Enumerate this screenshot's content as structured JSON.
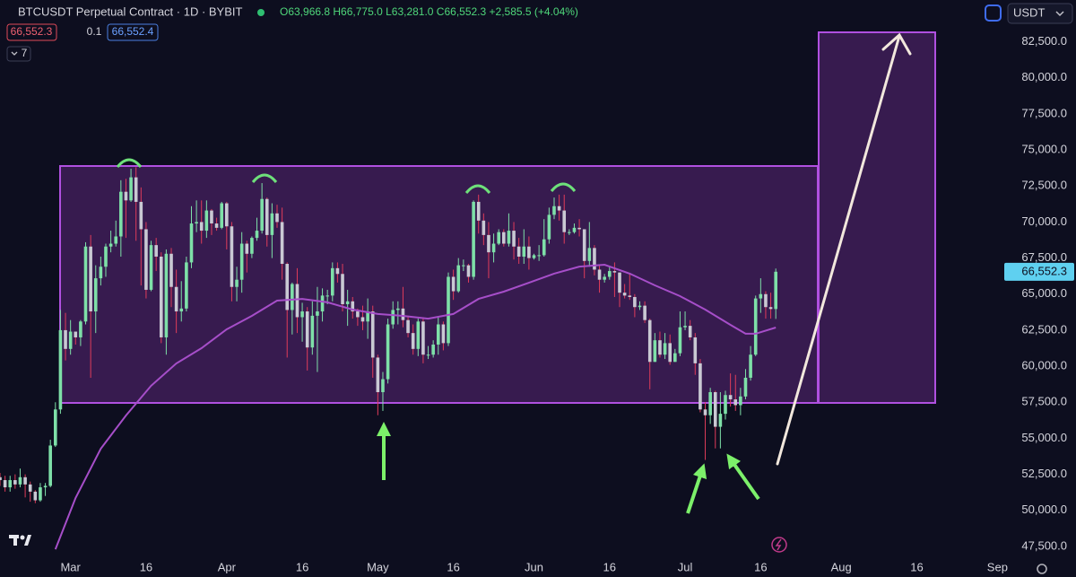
{
  "header": {
    "symbol": "BTCUSDT Perpetual Contract · 1D · BYBIT",
    "ohlc": "O63,966.8 H66,775.0 L63,281.0 C66,552.3 +2,585.5 (+4.04%)",
    "bid": "66,552.3",
    "spread": "0.1",
    "ask": "66,552.4",
    "indicators": "7",
    "currency": "USDT"
  },
  "chart_data": {
    "type": "candlestick",
    "up_color": "#7ee0a8",
    "down_color": "#c9c9d3",
    "down_wick_color": "#e03c5a",
    "xlim": [
      0,
      199
    ],
    "xticks": [
      {
        "value": 14,
        "label": "Mar"
      },
      {
        "value": 29,
        "label": "16"
      },
      {
        "value": 45,
        "label": "Apr"
      },
      {
        "value": 60,
        "label": "16"
      },
      {
        "value": 75,
        "label": "May"
      },
      {
        "value": 90,
        "label": "16"
      },
      {
        "value": 106,
        "label": "Jun"
      },
      {
        "value": 121,
        "label": "16"
      },
      {
        "value": 136,
        "label": "Jul"
      },
      {
        "value": 151,
        "label": "16"
      },
      {
        "value": 167,
        "label": "Aug"
      },
      {
        "value": 182,
        "label": "16"
      },
      {
        "value": 198,
        "label": "Sep"
      }
    ],
    "ylim": [
      46500,
      85400
    ],
    "yticks": [
      {
        "value": 47500,
        "label": "47,500.0"
      },
      {
        "value": 50000,
        "label": "50,000.0"
      },
      {
        "value": 52500,
        "label": "52,500.0"
      },
      {
        "value": 55000,
        "label": "55,000.0"
      },
      {
        "value": 57500,
        "label": "57,500.0"
      },
      {
        "value": 60000,
        "label": "60,000.0"
      },
      {
        "value": 62500,
        "label": "62,500.0"
      },
      {
        "value": 65000,
        "label": "65,000.0"
      },
      {
        "value": 67500,
        "label": "67,500.0"
      },
      {
        "value": 70000,
        "label": "70,000.0"
      },
      {
        "value": 72500,
        "label": "72,500.0"
      },
      {
        "value": 75000,
        "label": "75,000.0"
      },
      {
        "value": 77500,
        "label": "77,500.0"
      },
      {
        "value": 80000,
        "label": "80,000.0"
      },
      {
        "value": 82500,
        "label": "82,500.0"
      }
    ],
    "grid": false,
    "last_price": {
      "value": 66552.3,
      "label": "66,552.3",
      "color": "#5fd0f0"
    },
    "open": [
      52300,
      52100,
      51600,
      52100,
      51800,
      52300,
      51800,
      51300,
      50700,
      51600,
      51700,
      54500,
      57000,
      62500,
      61200,
      62400,
      62000,
      63100,
      68300,
      63800,
      66100,
      66900,
      68300,
      68500,
      69000,
      72100,
      71500,
      73100,
      71400,
      69500,
      65300,
      68400,
      67600,
      62000,
      67800,
      65500,
      63800,
      64000,
      67200,
      69900,
      70000,
      69400,
      70800,
      69900,
      69600,
      71300,
      69700,
      65500,
      66000,
      68500,
      67800,
      68900,
      69400,
      71600,
      69100,
      70600,
      70000,
      67100,
      63900,
      65700,
      63400,
      63800,
      61300,
      63500,
      63800,
      64900,
      64900,
      66800,
      66400,
      64300,
      64500,
      63800,
      63400,
      63100,
      63800,
      60600,
      58200,
      59100,
      62900,
      63900,
      64000,
      63200,
      62300,
      61200,
      63100,
      60800,
      60800,
      61500,
      62900,
      61600,
      66200,
      65200,
      67000,
      67000,
      66200,
      71400,
      70100,
      69100,
      67900,
      68500,
      69300,
      68500,
      69400,
      68300,
      67600,
      68300,
      67500,
      67700,
      67700,
      68800,
      70500,
      71100,
      70800,
      69300,
      69300,
      69600,
      69500,
      67300,
      68200,
      66700,
      66000,
      66200,
      66600,
      66500,
      65100,
      64900,
      64800,
      64100,
      64200,
      63200,
      60300,
      61800,
      60800,
      61600,
      60300,
      60900,
      62700,
      62800,
      62000,
      60200,
      57000,
      56600,
      58200,
      55800,
      56700,
      58000,
      57700,
      57300,
      57900,
      59200,
      60800,
      64700,
      65000,
      64100,
      63966.8
    ],
    "high": [
      52600,
      52400,
      52400,
      52500,
      52900,
      52500,
      52000,
      51400,
      51900,
      51900,
      54900,
      57500,
      63900,
      63700,
      63200,
      62400,
      63200,
      68600,
      69100,
      67000,
      67600,
      68500,
      69400,
      70100,
      72900,
      73000,
      73700,
      73800,
      72400,
      70000,
      68700,
      68900,
      67900,
      68100,
      68200,
      66700,
      65900,
      67600,
      71100,
      71500,
      71500,
      71500,
      70900,
      70300,
      71400,
      71400,
      70000,
      66900,
      69300,
      68700,
      69000,
      70300,
      72700,
      71700,
      71300,
      71200,
      71000,
      67200,
      65800,
      66800,
      64400,
      64100,
      64500,
      65500,
      65400,
      65300,
      67200,
      67200,
      67100,
      65300,
      64800,
      64000,
      64200,
      64700,
      64200,
      60800,
      59600,
      63300,
      64500,
      64500,
      65500,
      63500,
      62900,
      63300,
      63400,
      61400,
      61800,
      63400,
      63100,
      66500,
      66700,
      67500,
      67400,
      67100,
      71500,
      71900,
      70600,
      70000,
      69200,
      69500,
      69500,
      70600,
      70000,
      68900,
      69500,
      69000,
      67800,
      68400,
      70200,
      71000,
      71700,
      71900,
      71900,
      69500,
      69900,
      70200,
      69500,
      70000,
      68400,
      67000,
      66400,
      66900,
      67200,
      66500,
      65700,
      66400,
      65000,
      64500,
      64500,
      63300,
      62300,
      62400,
      62300,
      62200,
      61200,
      63800,
      63800,
      63200,
      62300,
      60500,
      57500,
      58500,
      58300,
      58200,
      58300,
      59500,
      59400,
      58500,
      59800,
      61400,
      64900,
      66100,
      65200,
      65100,
      66775
    ],
    "low": [
      51700,
      51300,
      51300,
      51500,
      51600,
      50900,
      50600,
      50500,
      50600,
      51000,
      51600,
      54400,
      56700,
      60400,
      60800,
      61500,
      61400,
      62900,
      59200,
      62300,
      65600,
      66200,
      67900,
      68300,
      67600,
      68900,
      71400,
      68700,
      65600,
      64700,
      65200,
      66600,
      61600,
      60800,
      64100,
      62300,
      63100,
      63800,
      66800,
      69300,
      68500,
      68900,
      69100,
      69400,
      69500,
      68100,
      64500,
      64500,
      65100,
      66500,
      67500,
      68700,
      69200,
      68300,
      67500,
      69600,
      66000,
      60600,
      62200,
      62300,
      61700,
      59700,
      60800,
      59600,
      63100,
      64300,
      64500,
      65800,
      63800,
      62800,
      63300,
      62800,
      62500,
      61900,
      59200,
      56600,
      56900,
      58800,
      62600,
      62900,
      62700,
      62000,
      60800,
      60700,
      60200,
      60500,
      60600,
      60800,
      61100,
      61400,
      64600,
      65100,
      66600,
      65800,
      66000,
      69200,
      68400,
      66100,
      67200,
      68400,
      68300,
      68300,
      67400,
      67100,
      67100,
      66700,
      67400,
      67300,
      67600,
      68500,
      70200,
      70100,
      68500,
      69100,
      69200,
      69000,
      66100,
      66900,
      66300,
      65100,
      65800,
      66000,
      64800,
      64100,
      64700,
      64600,
      63400,
      63900,
      63000,
      58400,
      60300,
      60600,
      60500,
      60100,
      60300,
      60700,
      62500,
      61800,
      59400,
      56800,
      53500,
      56000,
      54300,
      54300,
      56300,
      57200,
      56900,
      56600,
      57700,
      59000,
      60700,
      63700,
      63300,
      63300,
      63281
    ],
    "close": [
      52100,
      51600,
      52100,
      51800,
      52300,
      51800,
      51300,
      50700,
      51600,
      51700,
      54500,
      57000,
      62500,
      61200,
      62400,
      62000,
      63100,
      68300,
      63800,
      66100,
      66900,
      68300,
      68500,
      69000,
      72100,
      71500,
      73100,
      71400,
      69500,
      65300,
      68400,
      67600,
      62000,
      67800,
      65500,
      63800,
      64000,
      67200,
      69900,
      70000,
      69400,
      70800,
      69900,
      69600,
      71300,
      69700,
      65500,
      66000,
      68500,
      67800,
      68900,
      69400,
      71600,
      69100,
      70600,
      70000,
      67100,
      63900,
      65700,
      63400,
      63800,
      61300,
      63500,
      63800,
      64900,
      64900,
      66800,
      66400,
      64300,
      64500,
      63800,
      63400,
      63100,
      63800,
      60600,
      58200,
      59100,
      62900,
      63900,
      64000,
      63200,
      62300,
      61200,
      63100,
      60800,
      60800,
      61500,
      62900,
      61600,
      66200,
      65200,
      67000,
      67000,
      66200,
      71400,
      70100,
      69100,
      67900,
      68500,
      69300,
      68500,
      69400,
      68300,
      67600,
      68300,
      67500,
      67700,
      67700,
      68800,
      70500,
      71100,
      70800,
      69300,
      69300,
      69600,
      69500,
      67300,
      68200,
      66700,
      66000,
      66200,
      66600,
      66500,
      65100,
      64900,
      64800,
      64100,
      64200,
      63200,
      60300,
      61800,
      60800,
      61600,
      60300,
      60900,
      62700,
      62800,
      62000,
      60200,
      57000,
      56600,
      58200,
      55800,
      56700,
      58000,
      57700,
      57300,
      57900,
      59200,
      60800,
      64700,
      65000,
      64100,
      63966.8,
      66552.3
    ],
    "ma": {
      "color": "#a64ec9",
      "x": [
        11,
        15,
        20,
        25,
        30,
        35,
        40,
        45,
        50,
        55,
        60,
        65,
        70,
        75,
        80,
        85,
        90,
        95,
        100,
        105,
        110,
        115,
        120,
        125,
        130,
        135,
        140,
        145,
        148,
        150,
        154
      ],
      "values": [
        47300,
        50860,
        54280,
        56580,
        58640,
        60190,
        61250,
        62560,
        63490,
        64550,
        64670,
        64430,
        63930,
        63620,
        63490,
        63300,
        63620,
        64670,
        65170,
        65790,
        66420,
        66910,
        67040,
        66420,
        65610,
        64860,
        63930,
        62870,
        62250,
        62250,
        62680
      ]
    }
  }
}
